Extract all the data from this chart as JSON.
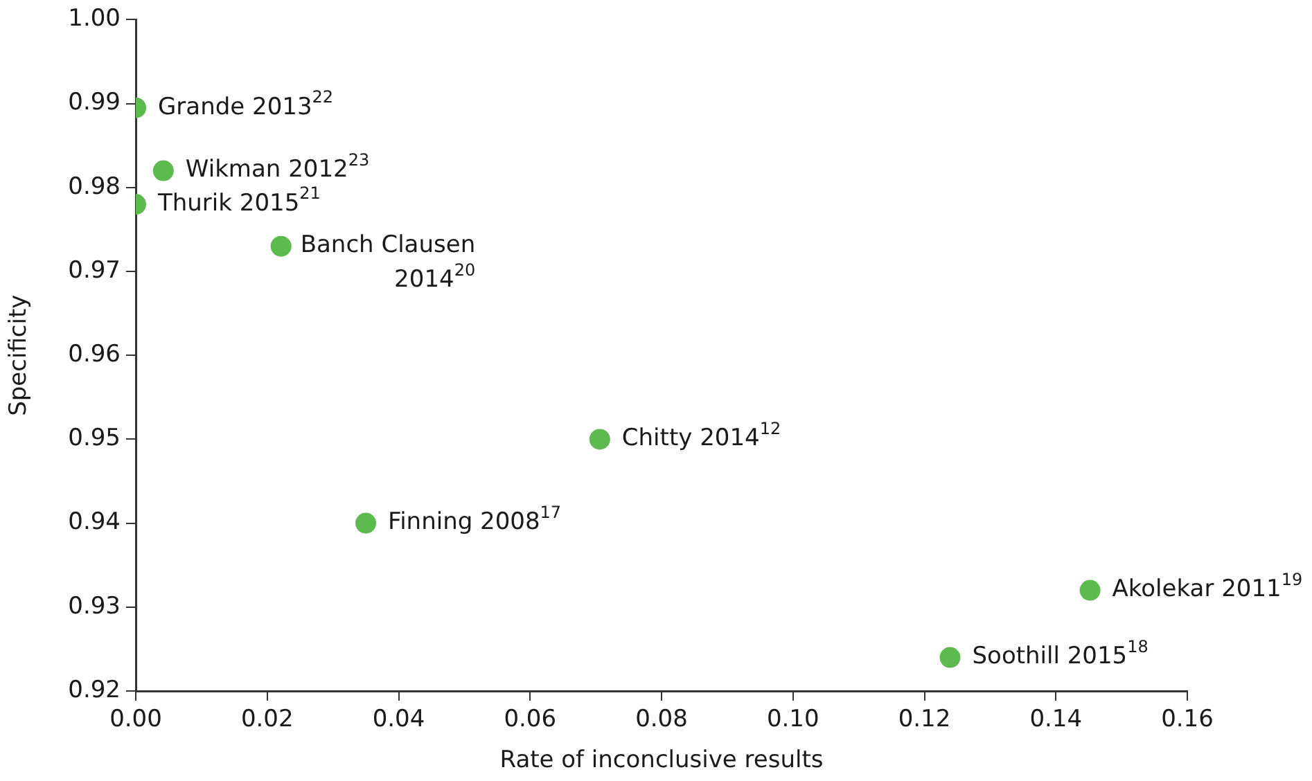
{
  "chart_data": {
    "type": "scatter",
    "xlabel": "Rate of inconclusive results",
    "ylabel": "Specificity",
    "x": [
      0,
      0.0042,
      0,
      0.0221,
      0.0706,
      0.035,
      0.1452,
      0.1239
    ],
    "values": [
      0.9895,
      0.982,
      0.978,
      0.973,
      0.95,
      0.94,
      0.932,
      0.924
    ],
    "color": "#5dba4e",
    "marker": "circle",
    "xlim": [
      0,
      0.16
    ],
    "xticks": [
      {
        "value": 0,
        "label": "0.00"
      },
      {
        "value": 0.02,
        "label": "0.02"
      },
      {
        "value": 0.04,
        "label": "0.04"
      },
      {
        "value": 0.06,
        "label": "0.06"
      },
      {
        "value": 0.08,
        "label": "0.08"
      },
      {
        "value": 0.1,
        "label": "0.10"
      },
      {
        "value": 0.12,
        "label": "0.12"
      },
      {
        "value": 0.14,
        "label": "0.14"
      },
      {
        "value": 0.16,
        "label": "0.16"
      }
    ],
    "ylim": [
      0.92,
      1
    ],
    "yticks": [
      {
        "value": 0.92,
        "label": "0.92"
      },
      {
        "value": 0.93,
        "label": "0.93"
      },
      {
        "value": 0.94,
        "label": "0.94"
      },
      {
        "value": 0.95,
        "label": "0.95"
      },
      {
        "value": 0.96,
        "label": "0.96"
      },
      {
        "value": 0.97,
        "label": "0.97"
      },
      {
        "value": 0.98,
        "label": "0.98"
      },
      {
        "value": 0.99,
        "label": "0.99"
      },
      {
        "value": 1,
        "label": "1.00"
      }
    ],
    "legend": false,
    "annotations": [
      {
        "text": "Grande 2013$^{22}$",
        "x": 0,
        "y": 0.9895
      },
      {
        "text": "Wikman 2012$^{23}$",
        "x": 0.0042,
        "y": 0.982
      },
      {
        "text": "Thurik 2015$^{21}$",
        "x": 0,
        "y": 0.978
      },
      {
        "text": "Banch Clausen 2014$^{20}$",
        "x": 0.0221,
        "y": 0.973
      },
      {
        "text": "Chitty 2014$^{12}$",
        "x": 0.0706,
        "y": 0.95
      },
      {
        "text": "Finning 2008$^{17}$",
        "x": 0.035,
        "y": 0.94
      },
      {
        "text": "Akolekar 2011$^{19}$",
        "x": 0.1452,
        "y": 0.932
      },
      {
        "text": "Soothill 2015$^{18}$",
        "x": 0.1239,
        "y": 0.924
      }
    ]
  }
}
